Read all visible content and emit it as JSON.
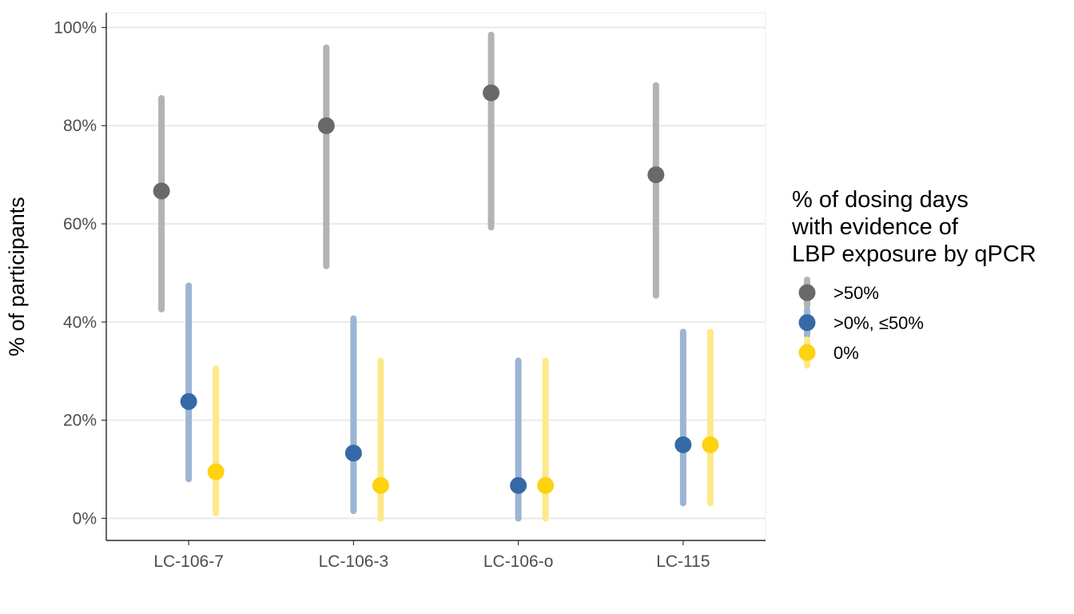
{
  "chart_data": {
    "type": "scatter",
    "categories": [
      "LC-106-7",
      "LC-106-3",
      "LC-106-o",
      "LC-115"
    ],
    "xlabel": "",
    "ylabel": "% of participants",
    "ylim": [
      -4.5,
      103
    ],
    "yticks": [
      0,
      20,
      40,
      60,
      80,
      100
    ],
    "ytick_labels": [
      "0%",
      "20%",
      "40%",
      "60%",
      "80%",
      "100%"
    ],
    "grid": "horizontal-major",
    "legend": {
      "title_lines": [
        "% of dosing days",
        "with evidence of",
        "LBP exposure by qPCR"
      ],
      "placement": "right"
    },
    "series": [
      {
        "name": ">50%",
        "color": "#696969",
        "bar_color": "#b3b3b3",
        "values": [
          66.7,
          80.0,
          86.7,
          70.0
        ],
        "lower": [
          42.6,
          51.4,
          59.3,
          45.4
        ],
        "upper": [
          85.6,
          95.9,
          98.5,
          88.2
        ]
      },
      {
        "name": ">0%, ≤50%",
        "color": "#3669a6",
        "bar_color": "#9bb5d4",
        "values": [
          23.8,
          13.3,
          6.7,
          15.0
        ],
        "lower": [
          8.0,
          1.5,
          0.0,
          3.1
        ],
        "upper": [
          47.4,
          40.7,
          32.1,
          38.0
        ]
      },
      {
        "name": "0%",
        "color": "#fdd20f",
        "bar_color": "#fde98a",
        "values": [
          9.5,
          6.7,
          6.7,
          15.0
        ],
        "lower": [
          1.1,
          0.0,
          0.0,
          3.1
        ],
        "upper": [
          30.5,
          32.1,
          32.1,
          38.0
        ]
      }
    ]
  }
}
